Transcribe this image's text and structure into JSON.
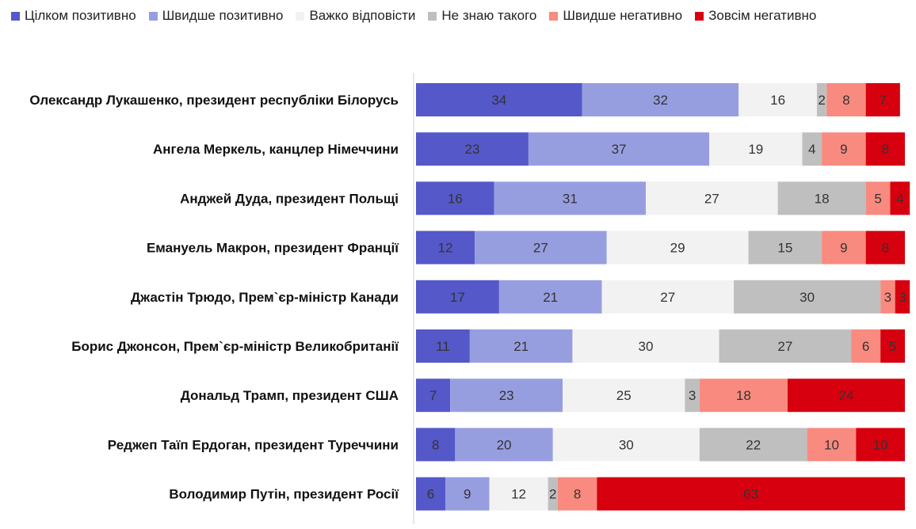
{
  "chart_data": {
    "type": "bar",
    "orientation": "horizontal",
    "stacked": true,
    "legend_position": "top",
    "categories": [
      "Олександр Лукашенко, президент республіки Білорусь",
      "Ангела Меркель, канцлер Німеччини",
      "Анджей Дуда, президент Польщі",
      "Емануель Макрон, президент Франції",
      "Джастін Трюдо, Прем`єр-міністр Канади",
      "Борис Джонсон, Прем`єр-міністр Великобританії",
      "Дональд Трамп, президент США",
      "Реджеп Таїп Ердоган, президент Туреччини",
      "Володимир Путін, президент Росії"
    ],
    "series": [
      {
        "name": "Цілком позитивно",
        "color": "#5558c8",
        "values": [
          34,
          23,
          16,
          12,
          17,
          11,
          7,
          8,
          6
        ]
      },
      {
        "name": "Швидше позитивно",
        "color": "#979ee0",
        "values": [
          32,
          37,
          31,
          27,
          21,
          21,
          23,
          20,
          9
        ]
      },
      {
        "name": "Важко відповісти",
        "color": "#f2f2f2",
        "values": [
          16,
          19,
          27,
          29,
          27,
          30,
          25,
          30,
          12
        ]
      },
      {
        "name": "Не знаю такого",
        "color": "#bfbfbf",
        "values": [
          2,
          4,
          18,
          15,
          30,
          27,
          3,
          22,
          2
        ]
      },
      {
        "name": "Швидше негативно",
        "color": "#f98a7f",
        "values": [
          8,
          9,
          5,
          9,
          3,
          6,
          18,
          10,
          8
        ]
      },
      {
        "name": "Зовсім негативно",
        "color": "#d6000f",
        "values": [
          7,
          8,
          4,
          8,
          3,
          5,
          24,
          10,
          63
        ]
      }
    ],
    "xlim": [
      0,
      100
    ],
    "grid": false,
    "title": "",
    "xlabel": "",
    "ylabel": ""
  }
}
